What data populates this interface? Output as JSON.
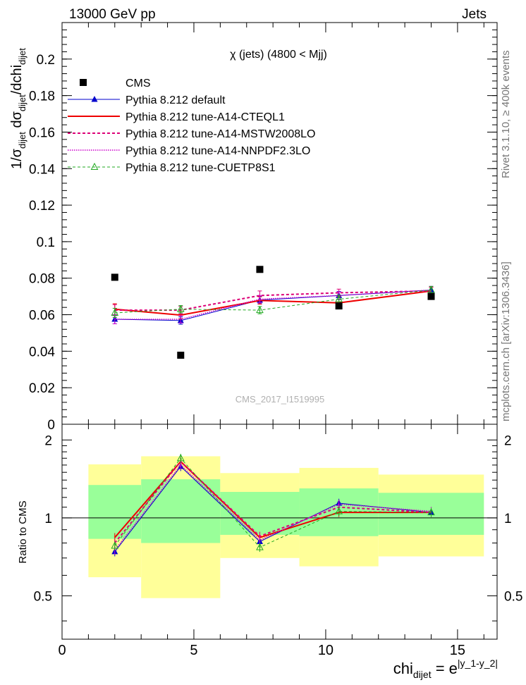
{
  "header": {
    "left": "13000 GeV pp",
    "right": "Jets"
  },
  "side_labels": {
    "rivet": "Rivet 3.1.10, ≥ 400k events",
    "mcplots": "mcplots.cern.ch [arXiv:1306.3436]"
  },
  "plot_title": "χ (jets) (4800 < Mjj)",
  "analysis_tag": "CMS_2017_I1519995",
  "ylabel_main": "1/σdijet dσdijet/dchidijet",
  "ylabel_ratio": "Ratio to CMS",
  "xlabel": "chidijet = e|y_1-y_2|",
  "legend": [
    {
      "label": "CMS"
    },
    {
      "label": "Pythia 8.212 default"
    },
    {
      "label": "Pythia 8.212 tune-A14-CTEQL1"
    },
    {
      "label": "Pythia 8.212 tune-A14-MSTW2008LO"
    },
    {
      "label": "Pythia 8.212 tune-A14-NNPDF2.3LO"
    },
    {
      "label": "Pythia 8.212 tune-CUETP8S1"
    }
  ],
  "chart_data": [
    {
      "type": "scatter",
      "panel": "main",
      "xlim": [
        0,
        16.5
      ],
      "ylim": [
        0,
        0.22
      ],
      "yticks": [
        0,
        0.02,
        0.04,
        0.06,
        0.08,
        0.1,
        0.12,
        0.14,
        0.16,
        0.18,
        0.2
      ],
      "ytick_labels": [
        "0",
        "0.02",
        "0.04",
        "0.06",
        "0.08",
        "0.1",
        "0.12",
        "0.14",
        "0.16",
        "0.18",
        "0.2"
      ],
      "bin_edges": [
        1,
        3,
        6,
        9,
        12,
        16
      ],
      "x": [
        2,
        4.5,
        7.5,
        10.5,
        14
      ],
      "data": {
        "name": "CMS",
        "values": [
          0.0805,
          0.0378,
          0.0848,
          0.0648,
          0.07
        ]
      },
      "series": [
        {
          "name": "Pythia 8.212 default",
          "color": "#0000cc",
          "values": [
            0.0575,
            0.0568,
            0.068,
            0.0705,
            0.0735
          ],
          "errors": [
            0.0025,
            0.002,
            0.002,
            0.0022,
            0.002
          ]
        },
        {
          "name": "Pythia 8.212 tune-A14-CTEQL1",
          "color": "#ee0000",
          "values": [
            0.063,
            0.0598,
            0.0678,
            0.0665,
            0.073
          ],
          "errors": [
            0.003,
            0.002,
            0.002,
            0.002,
            0.002
          ]
        },
        {
          "name": "Pythia 8.212 tune-A14-MSTW2008LO",
          "color": "#dd0077",
          "values": [
            0.0625,
            0.0625,
            0.0705,
            0.072,
            0.073
          ],
          "errors": [
            0.003,
            0.002,
            0.0025,
            0.002,
            0.002
          ]
        },
        {
          "name": "Pythia 8.212 tune-A14-NNPDF2.3LO",
          "color": "#cc00cc",
          "values": [
            0.0575,
            0.0575,
            0.0685,
            0.0705,
            0.0735
          ],
          "errors": [
            0.0025,
            0.002,
            0.002,
            0.002,
            0.002
          ]
        },
        {
          "name": "Pythia 8.212 tune-CUETP8S1",
          "color": "#22aa22",
          "values": [
            0.061,
            0.063,
            0.0625,
            0.0685,
            0.0735
          ],
          "errors": [
            0.0025,
            0.002,
            0.002,
            0.0022,
            0.002
          ]
        }
      ]
    },
    {
      "type": "line",
      "panel": "ratio",
      "xlim": [
        0,
        16.5
      ],
      "ylim": [
        0.34,
        2.3
      ],
      "yticks": [
        0.5,
        1,
        2
      ],
      "ytick_labels": [
        "0.5",
        "1",
        "2"
      ],
      "xticks": [
        0,
        5,
        10,
        15
      ],
      "xtick_labels": [
        "0",
        "5",
        "10",
        "15"
      ],
      "bin_edges": [
        1,
        3,
        6,
        9,
        12,
        16
      ],
      "band_inner": {
        "lo": [
          0.83,
          0.8,
          0.86,
          0.85,
          0.86
        ],
        "hi": [
          1.34,
          1.41,
          1.26,
          1.3,
          1.25
        ]
      },
      "band_outer": {
        "lo": [
          0.59,
          0.49,
          0.7,
          0.65,
          0.71
        ],
        "hi": [
          1.61,
          1.73,
          1.49,
          1.56,
          1.47
        ]
      },
      "reference": 1,
      "x": [
        2,
        4.5,
        7.5,
        10.5,
        14
      ],
      "series": [
        {
          "name": "Pythia 8.212 default",
          "color": "#0000cc",
          "values": [
            0.74,
            1.58,
            0.81,
            1.14,
            1.05
          ]
        },
        {
          "name": "Pythia 8.212 tune-A14-CTEQL1",
          "color": "#ee0000",
          "values": [
            0.84,
            1.65,
            0.84,
            1.05,
            1.05
          ]
        },
        {
          "name": "Pythia 8.212 tune-A14-MSTW2008LO",
          "color": "#dd0077",
          "values": [
            0.8,
            1.65,
            0.85,
            1.1,
            1.05
          ]
        },
        {
          "name": "Pythia 8.212 tune-A14-NNPDF2.3LO",
          "color": "#cc00cc",
          "values": [
            0.75,
            1.6,
            0.82,
            1.13,
            1.06
          ]
        },
        {
          "name": "Pythia 8.212 tune-CUETP8S1",
          "color": "#22aa22",
          "values": [
            0.78,
            1.7,
            0.77,
            1.06,
            1.05
          ]
        }
      ]
    }
  ]
}
